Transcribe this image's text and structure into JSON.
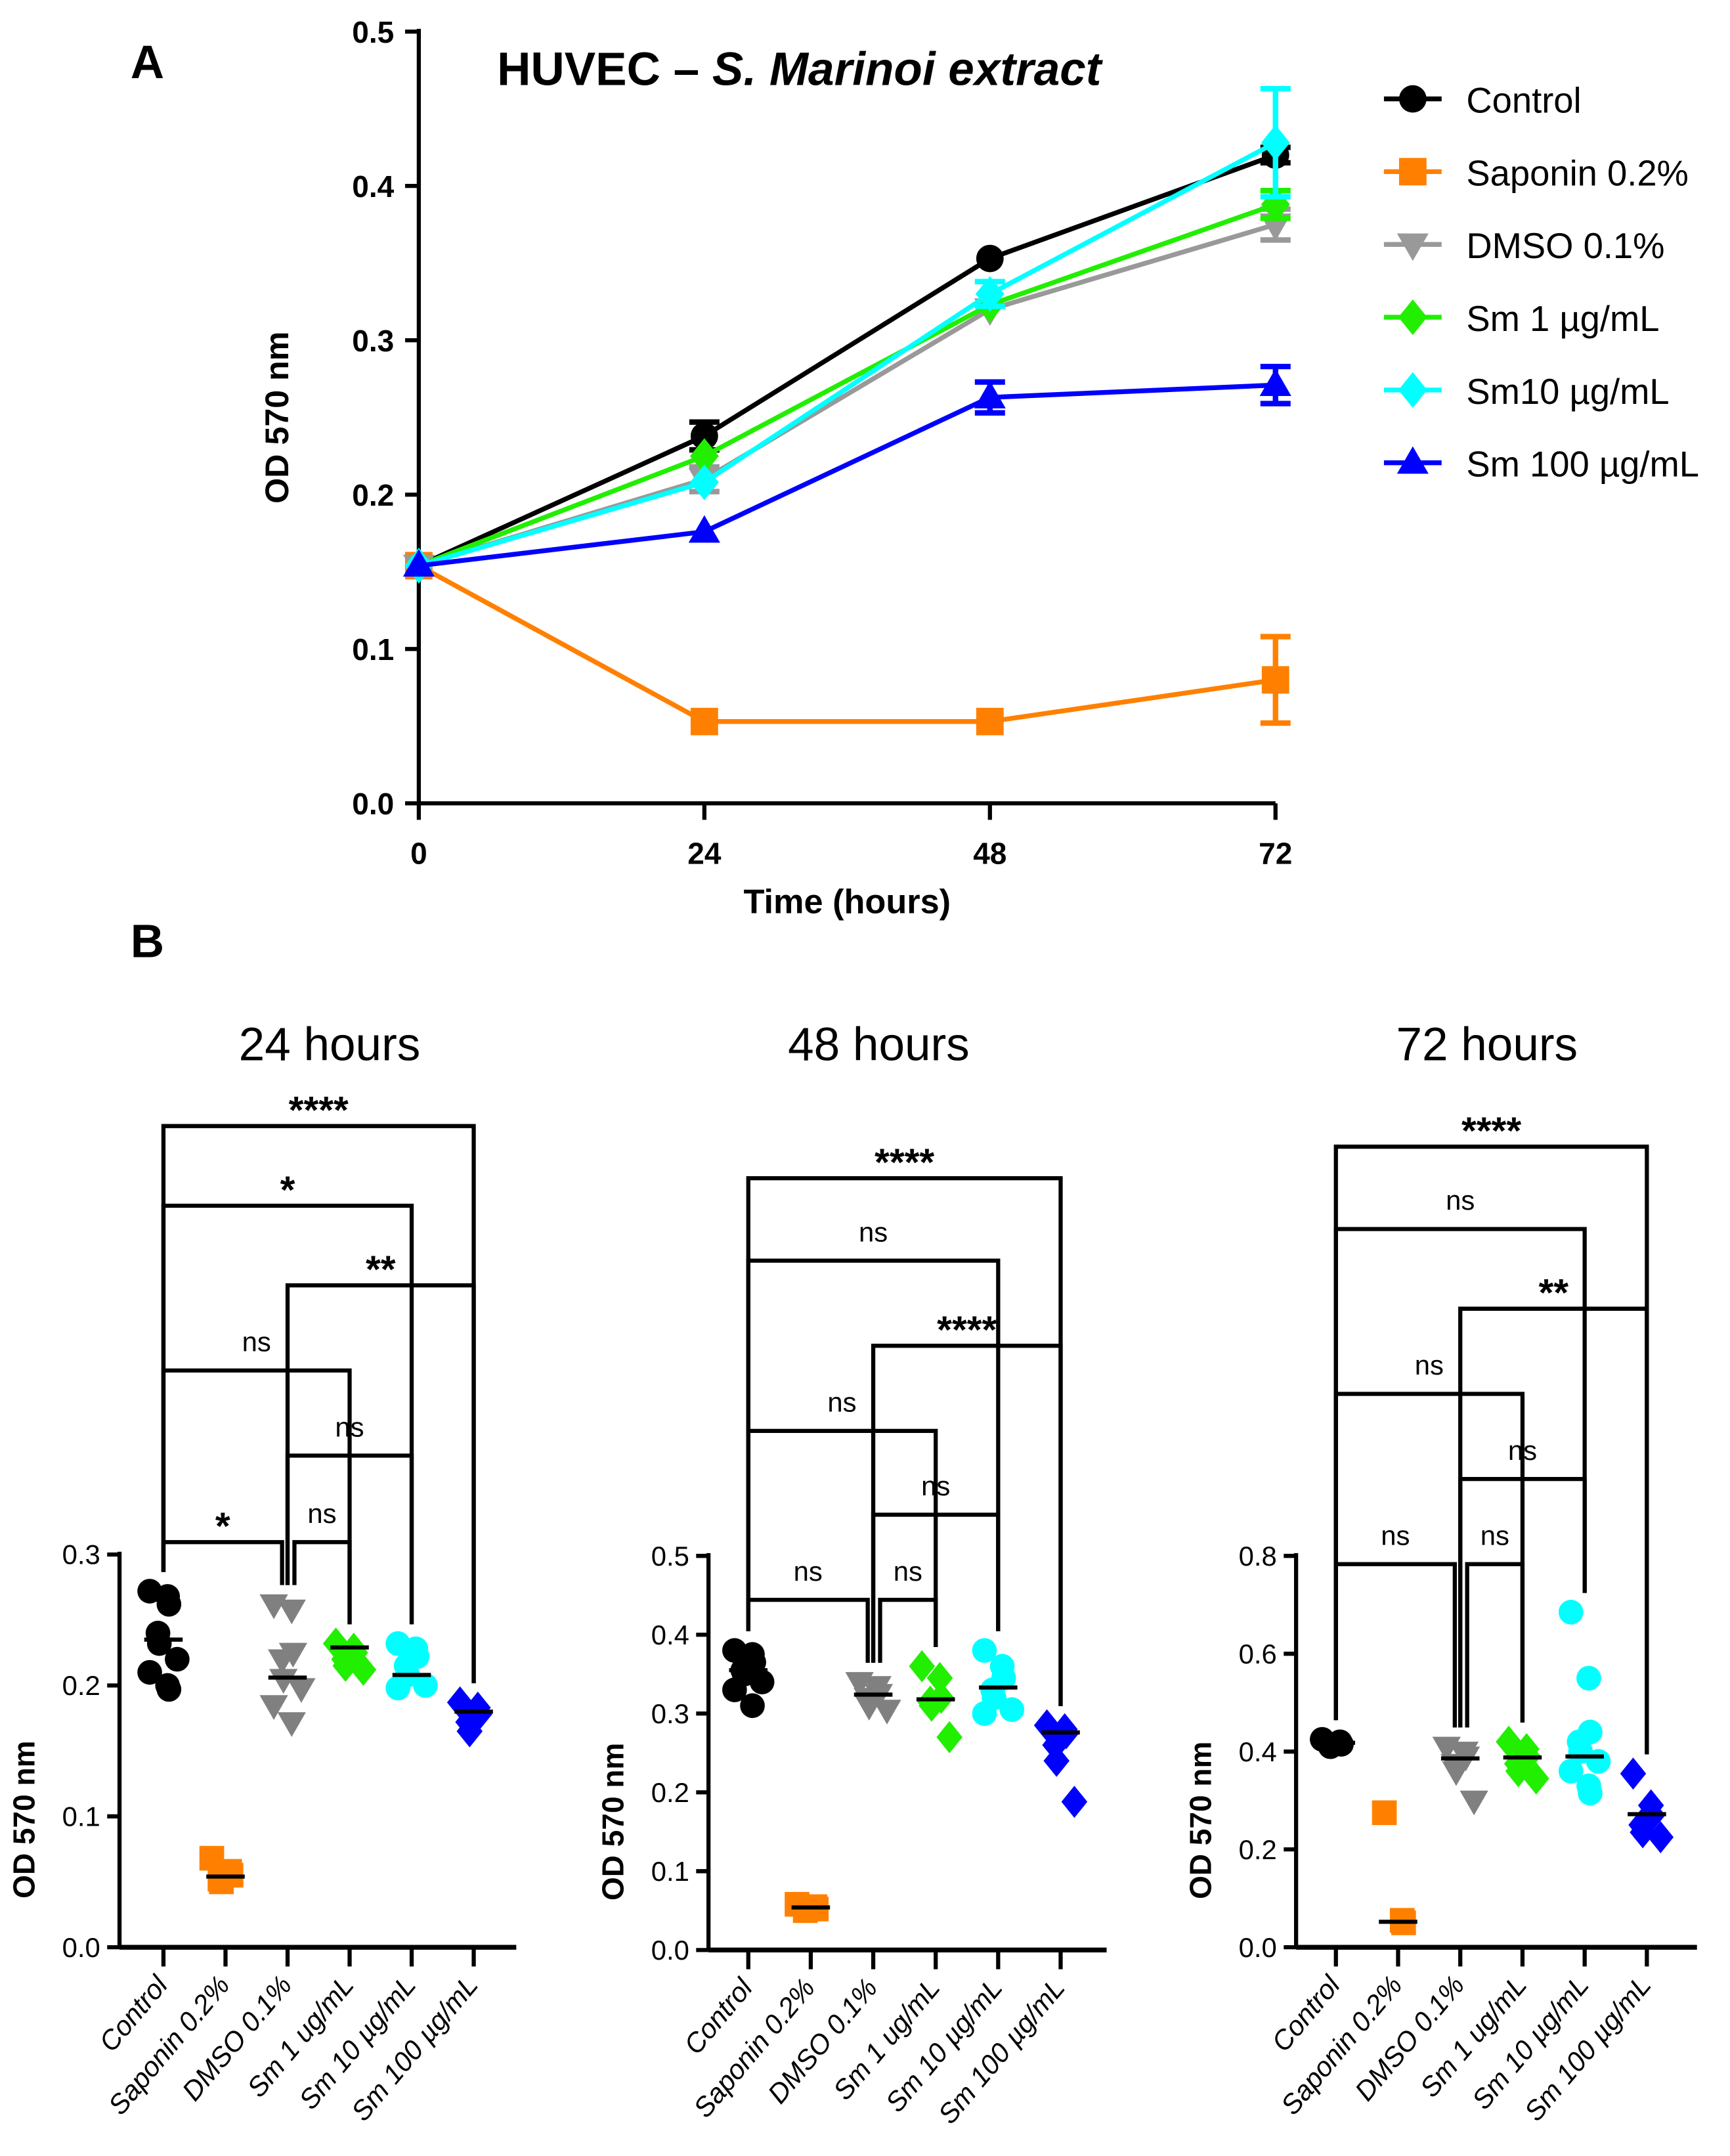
{
  "chart_data": [
    {
      "panel_label": "A",
      "type": "line",
      "title_plain": "HUVEC – ",
      "title_italic": "S. Marinoi extract",
      "xlabel": "Time (hours)",
      "ylabel": "OD 570 nm",
      "x": [
        0,
        24,
        48,
        72
      ],
      "xticks": [
        "0",
        "24",
        "48",
        "72"
      ],
      "ylim": [
        0,
        0.5
      ],
      "yticks": [
        "0.0",
        "0.1",
        "0.2",
        "0.3",
        "0.4",
        "0.5"
      ],
      "legend_position": "right",
      "series": [
        {
          "name": "Control",
          "color": "#000000",
          "marker": "circle",
          "values": [
            0.154,
            0.238,
            0.353,
            0.42
          ],
          "err": [
            0,
            0.009,
            0.003,
            0.005
          ]
        },
        {
          "name": "Saponin 0.2%",
          "color": "#ff8000",
          "marker": "square",
          "values": [
            0.154,
            0.053,
            0.053,
            0.08
          ],
          "err": [
            0,
            0.002,
            0.002,
            0.028
          ]
        },
        {
          "name": "DMSO 0.1%",
          "color": "#999999",
          "marker": "triangle-down",
          "values": [
            0.154,
            0.21,
            0.32,
            0.375
          ],
          "err": [
            0,
            0.008,
            0.004,
            0.01
          ]
        },
        {
          "name": "Sm 1 µg/mL",
          "color": "#22ee00",
          "marker": "diamond",
          "values": [
            0.154,
            0.225,
            0.323,
            0.388
          ],
          "err": [
            0,
            0.003,
            0.003,
            0.009
          ]
        },
        {
          "name": "Sm10 µg/mL",
          "color": "#00ffff",
          "marker": "diamond",
          "values": [
            0.154,
            0.208,
            0.33,
            0.428
          ],
          "err": [
            0,
            0.003,
            0.008,
            0.035
          ]
        },
        {
          "name": "Sm 100 µg/mL",
          "color": "#0000ff",
          "marker": "triangle-up",
          "values": [
            0.154,
            0.176,
            0.263,
            0.271
          ],
          "err": [
            0,
            0.002,
            0.01,
            0.012
          ]
        }
      ]
    },
    {
      "panel_label": "B",
      "type": "scatter",
      "ylabel": "OD 570 nm",
      "categories": [
        "Control",
        "Saponin 0.2%",
        "DMSO 0.1%",
        "Sm 1 ug/mL",
        "Sm 10 µg/mL",
        "Sm 100 µg/mL"
      ],
      "colors": [
        "#000000",
        "#ff8000",
        "#808080",
        "#22ee00",
        "#00ffff",
        "#0000ff"
      ],
      "markers": [
        "circle",
        "square",
        "triangle-down",
        "diamond",
        "circle",
        "diamond"
      ],
      "subplots": [
        {
          "title": "24 hours",
          "ylim": [
            0,
            0.3
          ],
          "yticks": [
            "0.0",
            "0.1",
            "0.2",
            "0.3"
          ],
          "points": [
            [
              0.272,
              0.268,
              0.262,
              0.24,
              0.232,
              0.22,
              0.21,
              0.2,
              0.197
            ],
            [
              0.068,
              0.058,
              0.055,
              0.052,
              0.05
            ],
            [
              0.262,
              0.258,
              0.225,
              0.22,
              0.205,
              0.198,
              0.185,
              0.172
            ],
            [
              0.232,
              0.228,
              0.225,
              0.22,
              0.215,
              0.212
            ],
            [
              0.232,
              0.228,
              0.222,
              0.215,
              0.208,
              0.2,
              0.198
            ],
            [
              0.187,
              0.183,
              0.178,
              0.172,
              0.165
            ]
          ],
          "means": [
            0.235,
            0.054,
            0.206,
            0.229,
            0.208,
            0.18
          ],
          "comparisons": [
            {
              "from": 0,
              "to": 5,
              "label": "****"
            },
            {
              "from": 0,
              "to": 4,
              "label": "*"
            },
            {
              "from": 2,
              "to": 5,
              "label": "**"
            },
            {
              "from": 0,
              "to": 3,
              "label": "ns"
            },
            {
              "from": 2,
              "to": 4,
              "label": "ns"
            },
            {
              "from": 0,
              "to": 2,
              "label": "*"
            },
            {
              "from": 2,
              "to": 3,
              "label": "ns"
            }
          ]
        },
        {
          "title": "48 hours",
          "ylim": [
            0,
            0.5
          ],
          "yticks": [
            "0.0",
            "0.1",
            "0.2",
            "0.3",
            "0.4",
            "0.5"
          ],
          "points": [
            [
              0.38,
              0.375,
              0.365,
              0.355,
              0.35,
              0.34,
              0.33,
              0.31
            ],
            [
              0.058,
              0.055,
              0.052,
              0.05
            ],
            [
              0.34,
              0.335,
              0.325,
              0.32,
              0.31,
              0.305
            ],
            [
              0.36,
              0.345,
              0.32,
              0.315,
              0.31,
              0.27
            ],
            [
              0.38,
              0.36,
              0.345,
              0.33,
              0.32,
              0.305,
              0.3
            ],
            [
              0.285,
              0.28,
              0.275,
              0.26,
              0.24,
              0.188
            ]
          ],
          "means": [
            0.355,
            0.054,
            0.324,
            0.318,
            0.333,
            0.276
          ],
          "comparisons": [
            {
              "from": 0,
              "to": 5,
              "label": "****"
            },
            {
              "from": 0,
              "to": 4,
              "label": "ns"
            },
            {
              "from": 2,
              "to": 5,
              "label": "****"
            },
            {
              "from": 0,
              "to": 3,
              "label": "ns"
            },
            {
              "from": 2,
              "to": 4,
              "label": "ns"
            },
            {
              "from": 0,
              "to": 2,
              "label": "ns"
            },
            {
              "from": 2,
              "to": 3,
              "label": "ns"
            }
          ]
        },
        {
          "title": "72 hours",
          "ylim": [
            0,
            0.8
          ],
          "yticks": [
            "0.0",
            "0.2",
            "0.4",
            "0.6",
            "0.8"
          ],
          "points": [
            [
              0.425,
              0.42,
              0.415,
              0.41
            ],
            [
              0.275,
              0.055,
              0.05
            ],
            [
              0.41,
              0.4,
              0.39,
              0.375,
              0.36,
              0.3
            ],
            [
              0.42,
              0.405,
              0.39,
              0.375,
              0.36,
              0.345
            ],
            [
              0.685,
              0.55,
              0.44,
              0.42,
              0.4,
              0.38,
              0.36,
              0.33,
              0.315
            ],
            [
              0.355,
              0.29,
              0.27,
              0.25,
              0.235,
              0.225
            ]
          ],
          "means": [
            0.418,
            0.052,
            0.386,
            0.388,
            0.39,
            0.272
          ],
          "comparisons": [
            {
              "from": 0,
              "to": 5,
              "label": "****"
            },
            {
              "from": 0,
              "to": 4,
              "label": "ns"
            },
            {
              "from": 2,
              "to": 5,
              "label": "**"
            },
            {
              "from": 0,
              "to": 3,
              "label": "ns"
            },
            {
              "from": 2,
              "to": 4,
              "label": "ns"
            },
            {
              "from": 0,
              "to": 2,
              "label": "ns"
            },
            {
              "from": 2,
              "to": 3,
              "label": "ns"
            }
          ]
        }
      ]
    }
  ]
}
